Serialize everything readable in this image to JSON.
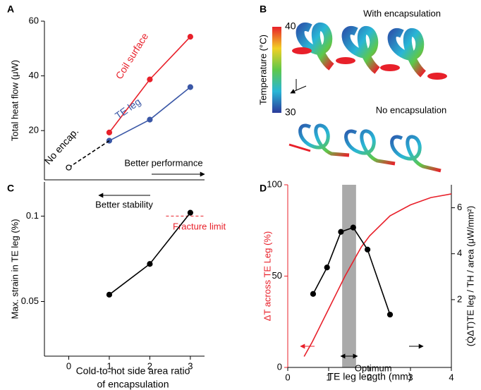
{
  "chart_data": [
    {
      "panel": "A",
      "type": "line",
      "ylabel": "Total heat flow (μW)",
      "xlim": [
        -0.6,
        3.35
      ],
      "ylim": [
        2,
        60
      ],
      "yticks": [
        20,
        40,
        60
      ],
      "series": [
        {
          "name": "Coil surface",
          "color": "#e8202a",
          "x": [
            1,
            2,
            3
          ],
          "values": [
            19.3,
            38.7,
            54.3
          ]
        },
        {
          "name": "TE leg",
          "color": "#3a57a6",
          "x": [
            1,
            2,
            3
          ],
          "values": [
            16.3,
            24,
            35.9
          ]
        },
        {
          "name": "No encap.",
          "color": "#000000",
          "dashed": true,
          "x": [
            0,
            1
          ],
          "values": [
            6.5,
            16.3
          ]
        }
      ],
      "annotations": [
        "Better performance"
      ]
    },
    {
      "panel": "B",
      "type": "image",
      "colorbar": {
        "label": "Temperature (°C)",
        "lim": [
          30,
          40
        ],
        "ticks": [
          30,
          40
        ]
      },
      "annotations": [
        "With encapsulation",
        "No encapsulation"
      ]
    },
    {
      "panel": "C",
      "type": "line",
      "xlabel": [
        "Cold-to-hot side area ratio",
        "of encapsulation"
      ],
      "ylabel": "Max. strain in TE leg (%)",
      "xlim": [
        -0.6,
        3.35
      ],
      "xticks": [
        0,
        1,
        2,
        3
      ],
      "ylim": [
        0.018,
        0.12
      ],
      "yticks": [
        0.05,
        0.1
      ],
      "series": [
        {
          "color": "#000000",
          "x": [
            1,
            2,
            3
          ],
          "values": [
            0.054,
            0.072,
            0.102
          ]
        }
      ],
      "hline": {
        "value": 0.1,
        "label": "Fracture limit",
        "color": "#e8202a"
      },
      "annotations": [
        "Better stability"
      ]
    },
    {
      "panel": "D",
      "type": "line",
      "xlabel": "TE leg length (mm)",
      "ylabel": "ΔT across TE Leg (%)",
      "y2label": "(Q̇ΔT)TE leg / TH / area (μW/mm²)",
      "xlim": [
        0,
        4
      ],
      "xticks": [
        0,
        1,
        2,
        3,
        4
      ],
      "ylim": [
        0,
        100
      ],
      "yticks": [
        0,
        50,
        100
      ],
      "y2lim": [
        -0.95,
        7
      ],
      "y2ticks": [
        2,
        4,
        6
      ],
      "series": [
        {
          "color": "#e8202a",
          "markers": false,
          "x": [
            0.4,
            0.6,
            0.8,
            1.0,
            1.2,
            1.4,
            1.6,
            1.8,
            2.0,
            2.5,
            3.0,
            3.5,
            4.0
          ],
          "values": [
            6,
            14,
            23,
            32,
            41,
            50,
            58,
            66,
            72,
            83,
            89,
            93,
            95
          ]
        },
        {
          "color": "#000000",
          "axis": "y2",
          "x": [
            0.62,
            0.96,
            1.3,
            1.6,
            1.95,
            2.5
          ],
          "values": [
            2.25,
            3.4,
            4.95,
            5.14,
            4.18,
            1.35
          ]
        }
      ],
      "band": {
        "range": [
          1.33,
          1.67
        ],
        "label": "Optimum",
        "color": "#aaaaaa"
      }
    }
  ]
}
